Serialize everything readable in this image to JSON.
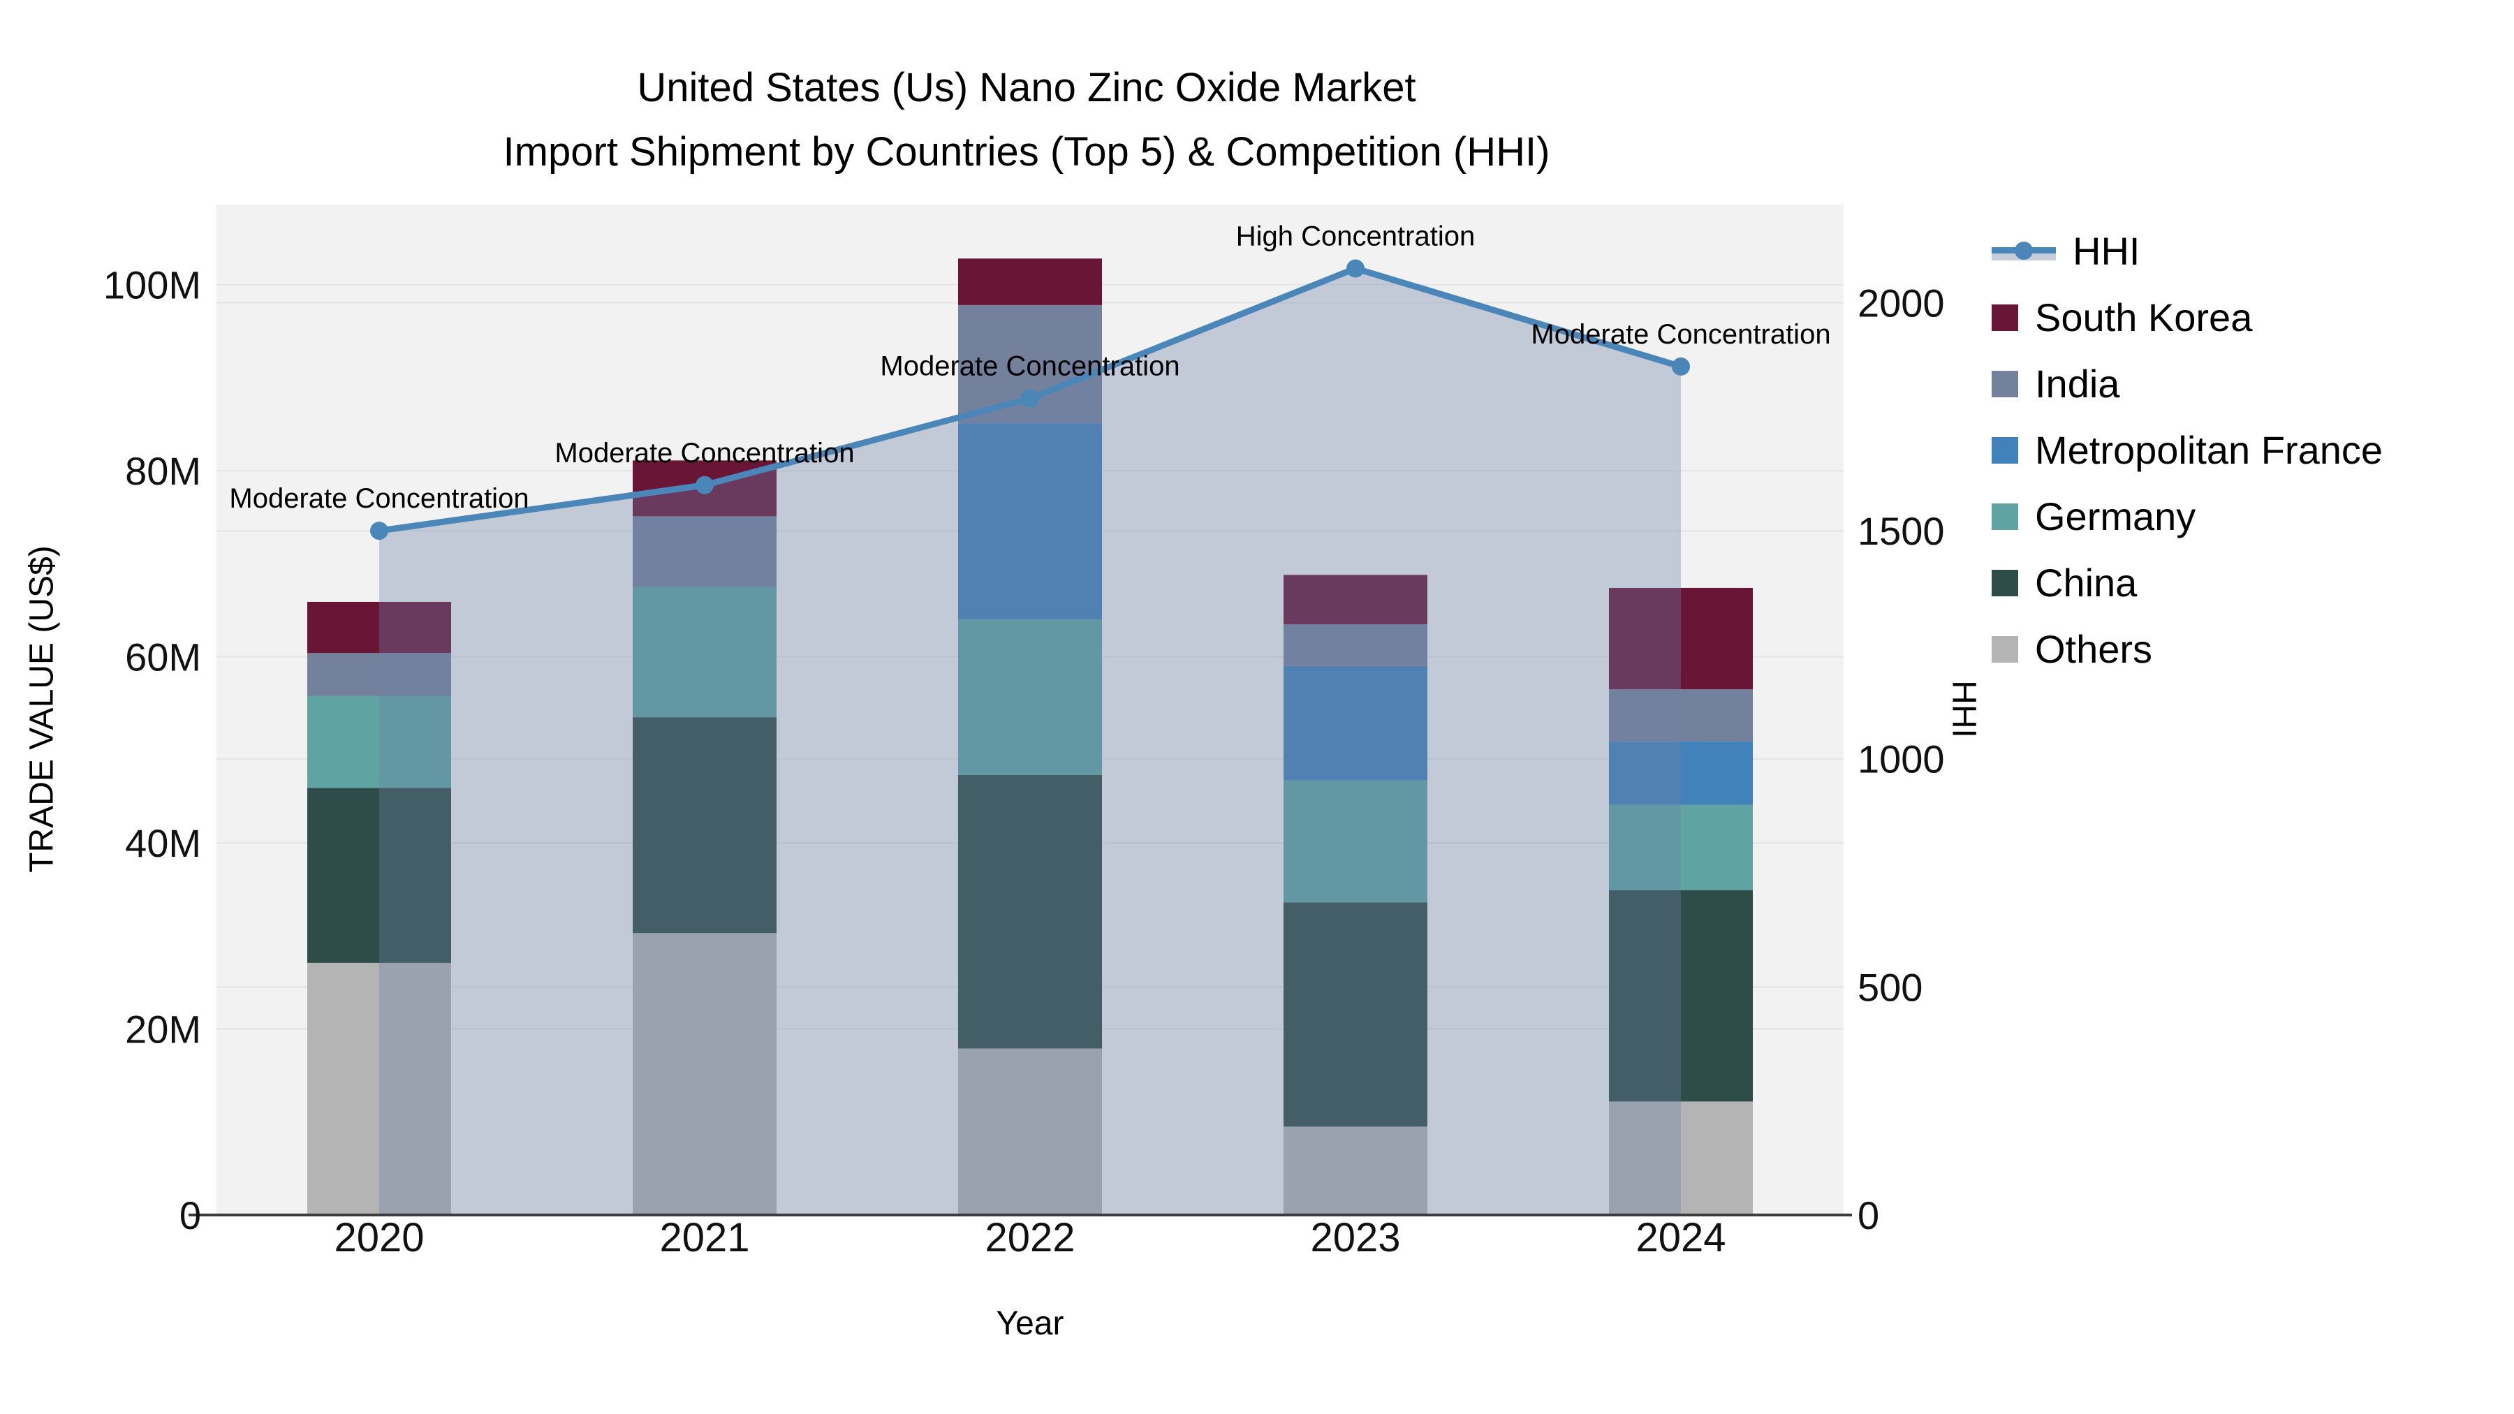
{
  "figure": {
    "title_line1": "United States (Us) Nano Zinc Oxide Market",
    "title_line2": "Import Shipment by Countries (Top 5) & Competition (HHI)"
  },
  "axes": {
    "x_title": "Year",
    "y_left_title": "TRADE VALUE (US$)",
    "y_right_title": "HHI",
    "y_left_tick_values": [
      0,
      20,
      40,
      60,
      80,
      100
    ],
    "y_left_tick_labels": [
      "0",
      "20M",
      "40M",
      "60M",
      "80M",
      "100M"
    ],
    "y_left_max": 108.6,
    "y_right_tick_values": [
      0,
      500,
      1000,
      1500,
      2000
    ],
    "y_right_tick_labels": [
      "0",
      "500",
      "1000",
      "1500",
      "2000"
    ],
    "y_right_max": 2215
  },
  "legend": {
    "items": [
      {
        "label": "HHI",
        "type": "line",
        "color": "#4a86b8"
      },
      {
        "label": "South Korea",
        "type": "swatch",
        "color": "#681536"
      },
      {
        "label": "India",
        "type": "swatch",
        "color": "#74819c"
      },
      {
        "label": "Metropolitan France",
        "type": "swatch",
        "color": "#4282ba"
      },
      {
        "label": "Germany",
        "type": "swatch",
        "color": "#60a3a3"
      },
      {
        "label": "China",
        "type": "swatch",
        "color": "#2e4c48"
      },
      {
        "label": "Others",
        "type": "swatch",
        "color": "#b4b4b4"
      }
    ]
  },
  "chart_data": {
    "type": "bar",
    "subtype": "stacked-bar-with-line",
    "title": "United States (Us) Nano Zinc Oxide Market Import Shipment by Countries (Top 5) & Competition (HHI)",
    "xlabel": "Year",
    "ylabel_left": "TRADE VALUE (US$)",
    "ylabel_right": "HHI",
    "categories": [
      "2020",
      "2021",
      "2022",
      "2023",
      "2024"
    ],
    "value_unit": "million US$",
    "series": [
      {
        "name": "Others",
        "color": "#b4b4b4",
        "values": [
          27.1,
          30.3,
          17.9,
          9.5,
          12.2
        ]
      },
      {
        "name": "China",
        "color": "#2e4c48",
        "values": [
          18.8,
          23.2,
          29.4,
          24.1,
          22.7
        ]
      },
      {
        "name": "Germany",
        "color": "#60a3a3",
        "values": [
          9.9,
          14.0,
          16.7,
          13.1,
          9.2
        ]
      },
      {
        "name": "Metropolitan France",
        "color": "#4282ba",
        "values": [
          0.0,
          0.0,
          21.1,
          12.3,
          6.8
        ]
      },
      {
        "name": "India",
        "color": "#74819c",
        "values": [
          4.6,
          7.6,
          12.7,
          4.5,
          5.6
        ]
      },
      {
        "name": "South Korea",
        "color": "#681536",
        "values": [
          5.5,
          6.0,
          5.0,
          5.3,
          10.9
        ]
      }
    ],
    "bar_totals": [
      65.9,
      81.1,
      102.8,
      68.8,
      67.4
    ],
    "line_series": {
      "name": "HHI",
      "values": [
        1500,
        1600,
        1790,
        2075,
        1860
      ],
      "color": "#4a86b8",
      "area_fill": "rgba(110,130,165,0.35)"
    },
    "annotations": [
      {
        "x": "2020",
        "text": "Moderate Concentration"
      },
      {
        "x": "2021",
        "text": "Moderate Concentration"
      },
      {
        "x": "2022",
        "text": "Moderate Concentration"
      },
      {
        "x": "2023",
        "text": "High Concentration"
      },
      {
        "x": "2024",
        "text": "Moderate Concentration"
      }
    ],
    "ylim_left": [
      0,
      108.6
    ],
    "ylim_right": [
      0,
      2215
    ],
    "grid": true,
    "legend_position": "right",
    "plot_bg": "#f2f2f2",
    "grid_color": "#e4e4e4"
  }
}
